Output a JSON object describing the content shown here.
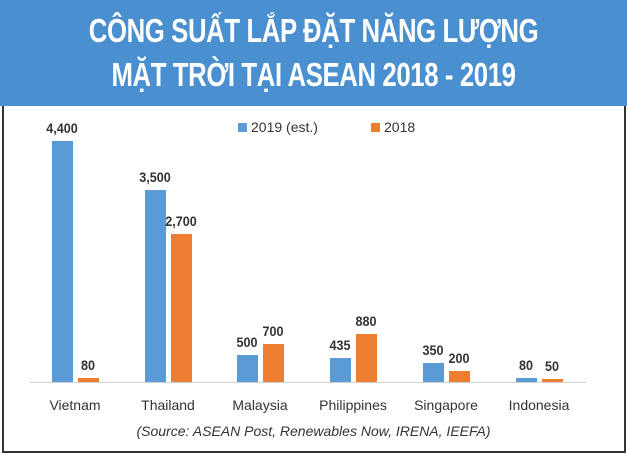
{
  "title": {
    "line1": "CÔNG SUẤT LẮP ĐẶT NĂNG LƯỢNG",
    "line2": "MẶT TRỜI TẠI ASEAN 2018 - 2019"
  },
  "legend": {
    "series1": "2019 (est.)",
    "series2": "2018"
  },
  "categories": [
    "Vietnam",
    "Thailand",
    "Malaysia",
    "Philippines",
    "Singapore",
    "Indonesia"
  ],
  "labels2019": [
    "4,400",
    "3,500",
    "500",
    "435",
    "350",
    "80"
  ],
  "labels2018": [
    "80",
    "2,700",
    "700",
    "880",
    "200",
    "50"
  ],
  "source": "(Source: ASEAN Post, Renewables Now, IRENA, IEEFA)",
  "colors": {
    "series2019": "#5b9bd5",
    "series2018": "#ed7d31",
    "banner": "#4a8fd0"
  },
  "chart_data": {
    "type": "bar",
    "title": "CÔNG SUẤT LẮP ĐẶT NĂNG LƯỢNG MẶT TRỜI TẠI ASEAN 2018 - 2019",
    "categories": [
      "Vietnam",
      "Thailand",
      "Malaysia",
      "Philippines",
      "Singapore",
      "Indonesia"
    ],
    "series": [
      {
        "name": "2019 (est.)",
        "values": [
          4400,
          3500,
          500,
          435,
          350,
          80
        ]
      },
      {
        "name": "2018",
        "values": [
          80,
          2700,
          700,
          880,
          200,
          50
        ]
      }
    ],
    "xlabel": "",
    "ylabel": "",
    "ylim": [
      0,
      4400
    ],
    "grid": false,
    "legend_position": "top",
    "annotation": "(Source: ASEAN Post, Renewables Now, IRENA, IEEFA)"
  }
}
